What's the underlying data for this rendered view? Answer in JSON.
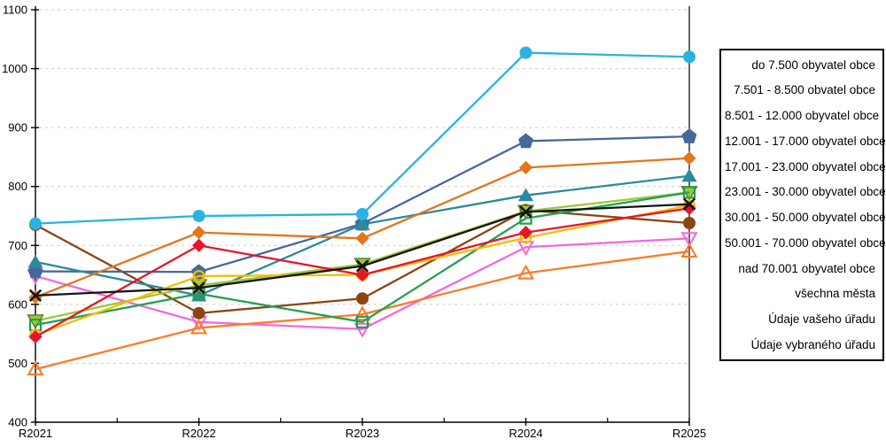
{
  "chart_data": {
    "type": "line",
    "title": "",
    "xlabel": "",
    "ylabel": "",
    "x_categories": [
      "R2021",
      "R2022",
      "R2023",
      "R2024",
      "R2025"
    ],
    "y_axis": {
      "min": 400,
      "max": 1100,
      "step": 100
    },
    "y_ticks": [
      400,
      500,
      600,
      700,
      800,
      900,
      1000,
      1100
    ],
    "grid": "horizontal-dashed",
    "grid_color": "#cbcbcb",
    "axis_color": "#000000",
    "legend_position": "right",
    "series": [
      {
        "name": "do 7.500 obyvatel obce",
        "color": "#2ab2e3",
        "marker": "circle",
        "fill": "filled",
        "values": [
          737,
          750,
          753,
          1027,
          1020
        ]
      },
      {
        "name": "7.501 - 8.500 obvatel obce",
        "color": "#e2761b",
        "marker": "diamond",
        "fill": "filled",
        "values": [
          612,
          722,
          712,
          832,
          848
        ]
      },
      {
        "name": "8.501 - 12.000 obyvatel obce",
        "color": "#9bc836",
        "marker": "triangle-down",
        "fill": "filled",
        "edge": "#4d6f15",
        "values": [
          572,
          632,
          668,
          758,
          790
        ]
      },
      {
        "name": "12.001 - 17.000 obyvatel obce",
        "color": "#f269df",
        "marker": "triangle-down",
        "fill": "open",
        "values": [
          648,
          570,
          558,
          697,
          712
        ]
      },
      {
        "name": "17.001 - 23.000 obyvatel obce",
        "color": "#2b8a9b",
        "marker": "triangle-up",
        "fill": "filled",
        "values": [
          672,
          615,
          736,
          785,
          818
        ]
      },
      {
        "name": "23.001 - 30.000 obyvatel obce",
        "color": "#8b4513",
        "marker": "circle",
        "fill": "filled",
        "values": [
          735,
          585,
          610,
          760,
          738
        ]
      },
      {
        "name": "30.001 - 50.000 obyvatel obce",
        "color": "#21a04e",
        "marker": "square",
        "fill": "open",
        "values": [
          565,
          618,
          570,
          746,
          790
        ]
      },
      {
        "name": "50.001 - 70.000 obyvatel obce",
        "color": "#fb7c28",
        "marker": "triangle-up",
        "fill": "open",
        "values": [
          490,
          560,
          583,
          653,
          690
        ]
      },
      {
        "name": "nad 70.001 obyvatel obce",
        "color": "#45689b",
        "marker": "pentagon",
        "fill": "filled",
        "values": [
          656,
          655,
          737,
          877,
          885
        ]
      },
      {
        "name": "všechna města",
        "color": "#f3bd00",
        "marker": "circle",
        "fill": "open",
        "values": [
          548,
          648,
          650,
          713,
          768
        ]
      },
      {
        "name": "Údaje vašeho úřadu",
        "color": "#e8142a",
        "marker": "diamond",
        "fill": "filled",
        "values": [
          545,
          700,
          650,
          722,
          763
        ]
      },
      {
        "name": "Údaje vybraného úřadu",
        "color": "#141414",
        "marker": "x",
        "fill": "open",
        "values": [
          615,
          628,
          665,
          757,
          770
        ]
      }
    ]
  }
}
